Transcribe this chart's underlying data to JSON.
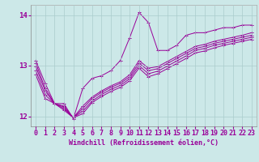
{
  "bg_color": "#cce8e8",
  "line_color": "#990099",
  "grid_color": "#aacccc",
  "xlabel": "Windchill (Refroidissement éolien,°C)",
  "xlabel_fontsize": 6.0,
  "tick_fontsize": 6.0,
  "ylim": [
    11.8,
    14.2
  ],
  "xlim": [
    -0.5,
    23.5
  ],
  "yticks": [
    12,
    13,
    14
  ],
  "xticks": [
    0,
    1,
    2,
    3,
    4,
    5,
    6,
    7,
    8,
    9,
    10,
    11,
    12,
    13,
    14,
    15,
    16,
    17,
    18,
    19,
    20,
    21,
    22,
    23
  ],
  "series": [
    [
      13.1,
      12.65,
      12.25,
      12.25,
      11.95,
      12.55,
      12.75,
      12.8,
      12.9,
      13.1,
      13.55,
      14.05,
      13.85,
      13.3,
      13.3,
      13.4,
      13.6,
      13.65,
      13.65,
      13.7,
      13.75,
      13.75,
      13.8,
      13.8
    ],
    [
      13.05,
      12.55,
      12.25,
      12.2,
      11.97,
      12.2,
      12.38,
      12.5,
      12.6,
      12.68,
      12.82,
      13.1,
      12.95,
      12.98,
      13.08,
      13.18,
      13.28,
      13.38,
      13.42,
      13.48,
      13.52,
      13.56,
      13.6,
      13.65
    ],
    [
      12.98,
      12.5,
      12.25,
      12.18,
      11.97,
      12.15,
      12.35,
      12.47,
      12.57,
      12.65,
      12.78,
      13.05,
      12.9,
      12.94,
      13.04,
      13.14,
      13.24,
      13.34,
      13.38,
      13.44,
      13.48,
      13.52,
      13.56,
      13.6
    ],
    [
      12.9,
      12.42,
      12.25,
      12.15,
      11.97,
      12.1,
      12.3,
      12.43,
      12.53,
      12.61,
      12.74,
      13.0,
      12.84,
      12.89,
      12.99,
      13.09,
      13.19,
      13.3,
      13.34,
      13.4,
      13.44,
      13.48,
      13.52,
      13.56
    ],
    [
      12.82,
      12.35,
      12.25,
      12.12,
      11.97,
      12.05,
      12.27,
      12.39,
      12.49,
      12.57,
      12.7,
      12.95,
      12.78,
      12.84,
      12.94,
      13.04,
      13.14,
      13.25,
      13.29,
      13.35,
      13.4,
      13.44,
      13.48,
      13.52
    ]
  ]
}
